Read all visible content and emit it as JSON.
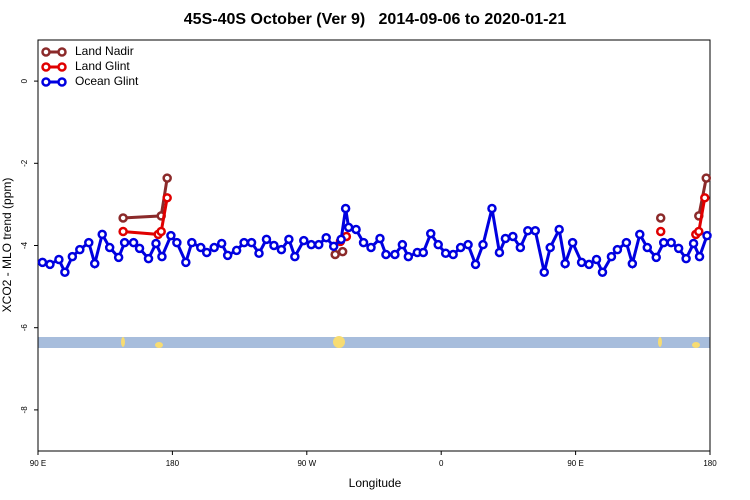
{
  "chart_data": {
    "type": "line",
    "title": "45S-40S October (Ver 9)   2014-09-06 to 2020-01-21",
    "xlabel": "Longitude",
    "ylabel": "XCO2 - MLO trend (ppm)",
    "xlim": [
      90,
      540
    ],
    "xticks": [
      {
        "value": 90,
        "label": "90 E"
      },
      {
        "value": 180,
        "label": "180"
      },
      {
        "value": 270,
        "label": "90 W"
      },
      {
        "value": 360,
        "label": "0"
      },
      {
        "value": 450,
        "label": "90 E"
      },
      {
        "value": 540,
        "label": "180"
      }
    ],
    "ylim": [
      -9,
      1
    ],
    "yticks": [
      -8,
      -6,
      -4,
      -2,
      0
    ],
    "legend": "top-left",
    "series": [
      {
        "name": "Land Nadir",
        "color": "#8b2a2a",
        "x": [
          147,
          172.5,
          176.5,
          null,
          289,
          294,
          null,
          507,
          null,
          532.5,
          537.5
        ],
        "values": [
          -3.33,
          -3.28,
          -2.36,
          null,
          -4.22,
          -4.15,
          null,
          -3.33,
          null,
          -3.28,
          -2.36
        ]
      },
      {
        "name": "Land Glint",
        "color": "#e00000",
        "x": [
          147,
          170.5,
          172.5,
          176.5,
          null,
          292.5,
          296.5,
          null,
          507,
          null,
          530.5,
          532.5,
          536.5
        ],
        "values": [
          -3.66,
          -3.73,
          -3.66,
          -2.84,
          null,
          -3.9,
          -3.78,
          null,
          -3.66,
          null,
          -3.73,
          -3.66,
          -2.84
        ]
      },
      {
        "name": "Ocean Glint",
        "color": "#0000e0",
        "x": [
          93,
          98,
          104,
          108,
          113,
          118,
          124,
          128,
          133,
          138,
          144,
          148,
          154,
          158,
          164,
          169,
          173,
          179,
          183,
          189,
          193,
          199,
          203,
          208,
          213,
          217,
          223,
          228,
          233,
          238,
          243,
          248,
          253,
          258,
          262,
          268,
          273,
          278,
          283,
          288,
          293,
          296,
          298,
          303,
          308,
          313,
          319,
          323,
          329,
          334,
          338,
          344,
          348,
          353,
          358,
          363,
          368,
          373,
          378,
          383,
          388,
          394,
          399,
          403,
          408,
          413,
          418,
          423,
          429,
          433,
          439,
          443,
          448,
          454,
          459,
          464,
          468,
          474,
          478,
          484,
          488,
          493,
          498,
          504,
          509,
          514,
          519,
          524,
          529,
          533,
          538
        ],
        "values": [
          -4.41,
          -4.46,
          -4.34,
          -4.65,
          -4.27,
          -4.1,
          -3.93,
          -4.44,
          -3.73,
          -4.05,
          -4.29,
          -3.93,
          -3.93,
          -4.07,
          -4.32,
          -3.95,
          -4.27,
          -3.76,
          -3.93,
          -4.41,
          -3.93,
          -4.05,
          -4.17,
          -4.05,
          -3.95,
          -4.24,
          -4.12,
          -3.93,
          -3.93,
          -4.19,
          -3.85,
          -4.0,
          -4.1,
          -3.85,
          -4.27,
          -3.88,
          -3.98,
          -3.98,
          -3.81,
          -4.02,
          -3.85,
          -3.1,
          -3.56,
          -3.61,
          -3.93,
          -4.05,
          -3.83,
          -4.22,
          -4.22,
          -3.98,
          -4.27,
          -4.17,
          -4.17,
          -3.71,
          -3.98,
          -4.19,
          -4.22,
          -4.05,
          -3.98,
          -4.46,
          -3.98,
          -3.1,
          -4.17,
          -3.83,
          -3.78,
          -4.05,
          -3.64,
          -3.64,
          -4.65,
          -4.05,
          -3.61,
          -4.44,
          -3.93,
          -4.41,
          -4.46,
          -4.34,
          -4.65,
          -4.27,
          -4.1,
          -3.93,
          -4.44,
          -3.73,
          -4.05,
          -4.29,
          -3.93,
          -3.93,
          -4.07,
          -4.32,
          -3.95,
          -4.27,
          -3.76
        ]
      }
    ]
  }
}
